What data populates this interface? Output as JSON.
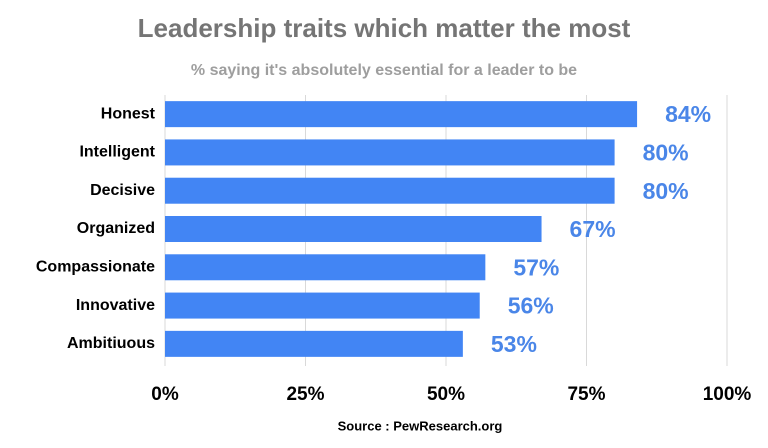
{
  "chart_data": {
    "type": "bar",
    "orientation": "horizontal",
    "title": "Leadership traits which matter the most",
    "subtitle": "% saying it's absolutely essential for a leader to be",
    "source": "Source : PewResearch.org",
    "categories": [
      "Honest",
      "Intelligent",
      "Decisive",
      "Organized",
      "Compassionate",
      "Innovative",
      "Ambitiuous"
    ],
    "values": [
      84,
      80,
      80,
      67,
      57,
      56,
      53
    ],
    "value_labels": [
      "84%",
      "80%",
      "80%",
      "67%",
      "57%",
      "56%",
      "53%"
    ],
    "color": "#4285f4",
    "label_color": "#4a86e8",
    "xlim": [
      0,
      100
    ],
    "xticks": [
      {
        "value": 0,
        "label": "0%"
      },
      {
        "value": 25,
        "label": "25%"
      },
      {
        "value": 50,
        "label": "50%"
      },
      {
        "value": 75,
        "label": "75%"
      },
      {
        "value": 100,
        "label": "100%"
      }
    ],
    "grid": true
  }
}
